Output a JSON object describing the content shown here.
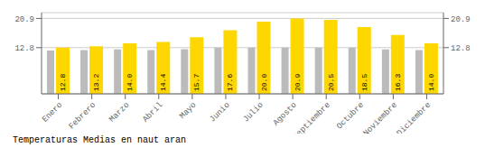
{
  "chart_data": {
    "type": "bar",
    "title": "Temperaturas Medias en naut aran",
    "categories": [
      "Enero",
      "Febrero",
      "Marzo",
      "Abril",
      "Mayo",
      "Junio",
      "Julio",
      "Agosto",
      "Septiembre",
      "Octubre",
      "Noviembre",
      "Diciembre"
    ],
    "series": [
      {
        "color": "#BBBBBB",
        "values": [
          12.0,
          12.1,
          12.3,
          12.1,
          12.4,
          12.8,
          12.8,
          12.8,
          12.8,
          12.8,
          12.3,
          12.1
        ]
      },
      {
        "color": "#FFD700",
        "values": [
          12.8,
          13.2,
          14.0,
          14.4,
          15.7,
          17.6,
          20.0,
          20.9,
          20.5,
          18.5,
          16.3,
          14.0
        ],
        "data_labels": true,
        "value_labels": [
          "12.8",
          "13.2",
          "14.0",
          "14.4",
          "15.7",
          "17.6",
          "20.0",
          "20.9",
          "20.5",
          "18.5",
          "16.3",
          "14.0"
        ]
      }
    ],
    "ylim": [
      0,
      22.5
    ],
    "yticks": [
      12.8,
      20.9
    ],
    "grid": true
  }
}
